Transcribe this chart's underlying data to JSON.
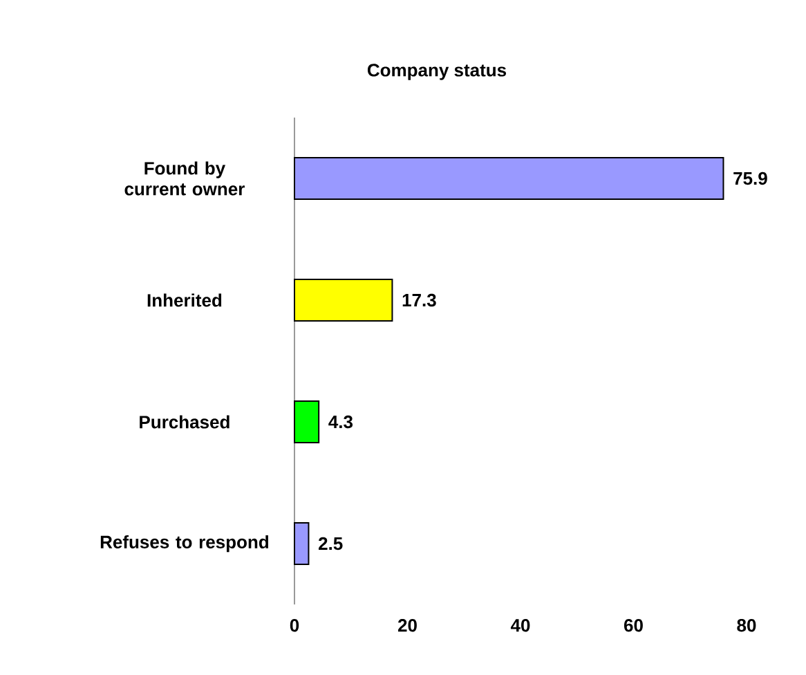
{
  "chart_data": {
    "type": "bar",
    "orientation": "horizontal",
    "title": "Company status",
    "categories": [
      "Found by current owner",
      "Inherited",
      "Purchased",
      "Refuses to respond"
    ],
    "values": [
      75.9,
      17.3,
      4.3,
      2.5
    ],
    "colors": [
      "#9999ff",
      "#ffff00",
      "#00ff00",
      "#9999ff"
    ],
    "xlim": [
      0,
      80
    ],
    "xticks": [
      0,
      20,
      40,
      60,
      80
    ],
    "data_labels": true,
    "grid": false
  }
}
